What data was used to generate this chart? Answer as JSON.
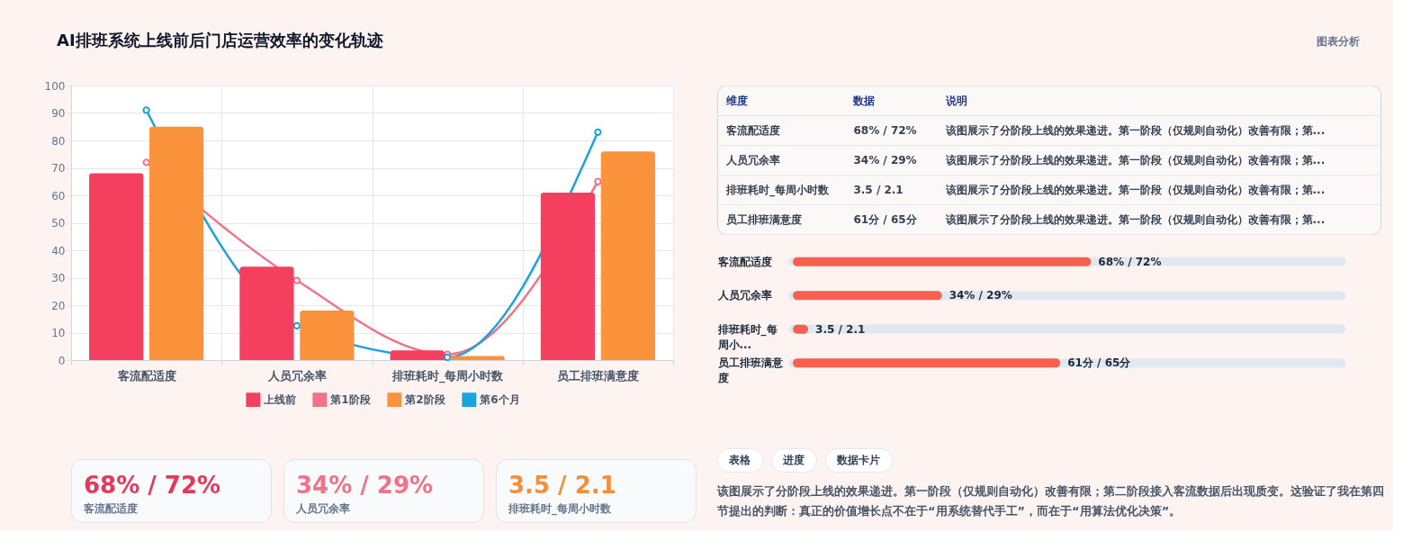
{
  "chart_data": [
    {
      "type": "bar",
      "title": "AI排班系统上线前后门店运营效率的变化轨迹",
      "annotations": [
        "图表分析"
      ],
      "categories": [
        "客流配适度",
        "人员冗余率",
        "排班耗时_每周小时数",
        "员工排班满意度"
      ],
      "series": [
        {
          "name": "上线前",
          "color": "#f43f5e",
          "values": [
            68,
            34,
            3.5,
            61
          ]
        },
        {
          "name": "第1阶段",
          "type": "line",
          "color": "#f07387",
          "marker": "circle",
          "line_style": "solid",
          "values": [
            72,
            29,
            2.1,
            65
          ]
        },
        {
          "name": "第2阶段",
          "color": "#fb923c",
          "values": [
            85,
            18,
            1.5,
            76
          ]
        },
        {
          "name": "第6个月",
          "type": "line",
          "color": "#1aa3dc",
          "marker": "circle",
          "line_style": "solid",
          "values": [
            91,
            12.5,
            1,
            83
          ]
        }
      ],
      "ylim": [
        0,
        100
      ],
      "yticks": [
        0,
        10,
        20,
        30,
        40,
        50,
        60,
        70,
        80,
        90,
        100
      ],
      "grid": true,
      "legend": "bottom"
    },
    {
      "type": "other",
      "categories": [
        "维度",
        "数据",
        "说明"
      ],
      "cell_labels": [
        [
          "客流配适度",
          "68% / 72%",
          "该图展示了分阶段上线的效果递进。第一阶段（仅规则自动化）改善有限；第..."
        ],
        [
          "人员冗余率",
          "34% / 29%",
          "该图展示了分阶段上线的效果递进。第一阶段（仅规则自动化）改善有限；第..."
        ],
        [
          "排班耗时_每周小时数",
          "3.5 / 2.1",
          "该图展示了分阶段上线的效果递进。第一阶段（仅规则自动化）改善有限；第..."
        ],
        [
          "员工排班满意度",
          "61分 / 65分",
          "该图展示了分阶段上线的效果递进。第一阶段（仅规则自动化）改善有限；第..."
        ]
      ]
    },
    {
      "type": "bar",
      "orientation": "horizontal",
      "categories": [
        "客流配适度",
        "人员冗余率",
        "排班耗时_每周小...",
        "员工排班满意度"
      ],
      "color": "#f6604f",
      "values": [
        68,
        34,
        3.5,
        61
      ],
      "value_labels": [
        "68% / 72%",
        "34% / 29%",
        "3.5 / 2.1",
        "61分 / 65分"
      ],
      "grid": "y"
    },
    {
      "type": "other",
      "categories": [
        "客流配适度",
        "人员冗余率",
        "排班耗时_每周小时数"
      ],
      "value_labels": [
        "68% / 72%",
        "34% / 29%",
        "3.5 / 2.1"
      ]
    },
    {
      "type": "other",
      "categories": [
        "表格",
        "进度",
        "数据卡片"
      ],
      "annotations": [
        "该图展示了分阶段上线的效果递进。第一阶段（仅规则自动化）改善有限；第二阶段接入客流数据后出现质变。这验证了我在第四节提出的判断：真正的价值增长点不在于“用系统替代手工”，而在于“用算法优化决策”。"
      ]
    }
  ]
}
